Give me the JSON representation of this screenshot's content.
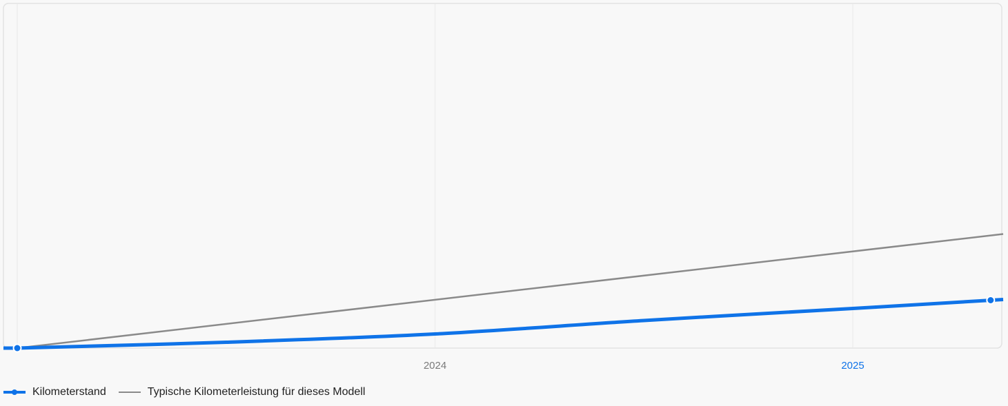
{
  "chart_data": {
    "type": "line",
    "title": "",
    "xlabel": "",
    "ylabel": "",
    "x_ticks": [
      {
        "label": "2024",
        "x": 2024.0
      },
      {
        "label": "2025",
        "x": 2025.0
      }
    ],
    "xlim": [
      2023.0,
      2025.36
    ],
    "ylim": [
      0,
      100
    ],
    "grid": {
      "vertical": true,
      "horizontal": false
    },
    "legend_position": "bottom-left",
    "series": [
      {
        "name": "Kilometerstand",
        "color": "#0f73e8",
        "style": "thick-curve",
        "x": [
          2023.0,
          2023.5,
          2024.0,
          2024.5,
          2025.0,
          2025.36
        ],
        "y": [
          0,
          1.7,
          4.1,
          8.0,
          11.5,
          14.1
        ],
        "markers": [
          {
            "x": 2023.0,
            "y": 0
          },
          {
            "x": 2025.33,
            "y": 13.9
          }
        ]
      },
      {
        "name": "Typische Kilometerleistung für dieses Modell",
        "color": "#8a8a8a",
        "style": "thin-line",
        "x": [
          2023.0,
          2025.36
        ],
        "y": [
          0,
          33.1
        ]
      }
    ],
    "colors": {
      "background": "#f8f8f8",
      "plot_border": "#e2e2e2",
      "grid": "#ececec",
      "tick_default": "#7a7a7a",
      "tick_highlight": "#0f73e8"
    },
    "highlighted_tick": "2025"
  }
}
